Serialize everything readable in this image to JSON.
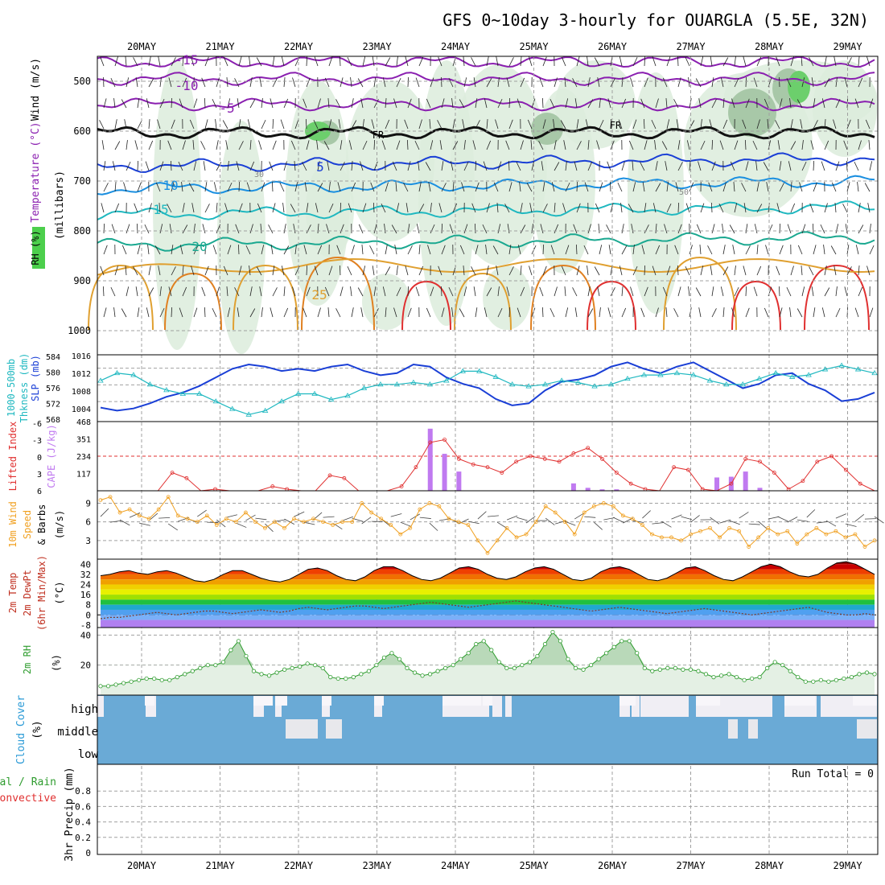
{
  "title": "GFS 0~10day 3-hourly for OUARGLA (5.5E, 32N)",
  "date_labels": [
    "20MAY",
    "21MAY",
    "22MAY",
    "23MAY",
    "24MAY",
    "25MAY",
    "26MAY",
    "27MAY",
    "28MAY",
    "29MAY"
  ],
  "panels": {
    "upper": {
      "label_wind": "Wind (m/s)",
      "label_temp": "Temperature (°C)",
      "label_rh": "RH (%)",
      "label_axis": "(millibars)",
      "pressure_ticks": [
        "500",
        "600",
        "700",
        "800",
        "900",
        "1000"
      ],
      "fr_label": "FR"
    },
    "thickness": {
      "label_thk_a": "1000-500mb",
      "label_thk_b": "Thkness (dm)",
      "label_slp": "SLP (mb)",
      "thk_ticks": [
        "584",
        "580",
        "576",
        "572",
        "568"
      ],
      "slp_ticks": [
        "1016",
        "1012",
        "1008",
        "1004"
      ]
    },
    "cape": {
      "label_li": "Lifted Index",
      "label_cape": "CAPE (J/kg)",
      "li_ticks": [
        "-6",
        "-3",
        "0",
        "3",
        "6"
      ],
      "cape_ticks": [
        "468",
        "351",
        "234",
        "117"
      ]
    },
    "wind10": {
      "label_a": "10m Wind",
      "label_b": "Speed",
      "label_c": "& Barbs",
      "label_unit": "(m/s)",
      "ticks": [
        "9",
        "6",
        "3"
      ]
    },
    "temp2m": {
      "label_a": "2m Temp",
      "label_b": "2m DewPt",
      "label_c": "(6hr Min/Max)",
      "label_unit": "(°C)",
      "ticks": [
        "40",
        "32",
        "24",
        "16",
        "8",
        "0",
        "-8"
      ]
    },
    "rh2m": {
      "label_a": "2m RH",
      "label_unit": "(%)",
      "ticks": [
        "40",
        "20"
      ]
    },
    "cloud": {
      "label_a": "Cloud Cover",
      "label_unit": "(%)",
      "levels": [
        "high",
        "middle",
        "low"
      ]
    },
    "precip": {
      "label_a": "Total / Rain",
      "label_b": "Convective",
      "label_c": "3hr Precip (mm)",
      "ticks": [
        "0.8",
        "0.6",
        "0.4",
        "0.2",
        "0"
      ],
      "run_total": "Run Total = 0"
    }
  },
  "colors": {
    "grid": "#a0a0a0",
    "slp": "#1a3fd6",
    "thickness": "#1fb8c0",
    "li": "#e03030",
    "cape": "#c07af0",
    "wind": "#f0a020",
    "rh": "#2e9c2e",
    "rh_fill": "#b9d9b9",
    "cloud": "#6aaad6",
    "cloud_clear": "#f0eef4",
    "freezing": "#101010"
  },
  "chart_data": [
    {
      "type": "line",
      "name": "upper-air",
      "isotherm_labels": [
        "-15",
        "-10",
        "-5",
        "5",
        "10",
        "15",
        "20",
        "25"
      ],
      "rh_contour_labels": [
        "30",
        "50"
      ],
      "ylim": [
        450,
        1000
      ]
    },
    {
      "type": "line",
      "series": [
        {
          "name": "SLP (mb)",
          "values": [
            1004.5,
            1003.8,
            1004.3,
            1005.5,
            1007.0,
            1008.0,
            1009.5,
            1011.5,
            1013.5,
            1014.5,
            1014.0,
            1013.0,
            1013.5,
            1013.0,
            1014.0,
            1014.5,
            1013.0,
            1012.0,
            1012.5,
            1014.5,
            1014.0,
            1011.5,
            1010.0,
            1009.0,
            1006.5,
            1005.0,
            1005.5,
            1008.5,
            1010.5,
            1011.0,
            1012.0,
            1014.0,
            1015.0,
            1013.5,
            1012.5,
            1014.0,
            1015.0,
            1013.0,
            1011.0,
            1009.0,
            1010.0,
            1012.0,
            1012.5,
            1010.0,
            1008.5,
            1006.0,
            1006.5,
            1008.0
          ]
        },
        {
          "name": "1000-500mb Thkness (dm)",
          "values": [
            578.0,
            580.0,
            579.5,
            577.0,
            575.5,
            574.5,
            574.5,
            572.5,
            570.5,
            569.0,
            570.0,
            572.5,
            574.5,
            574.5,
            573.0,
            574.0,
            576.0,
            577.0,
            577.0,
            577.5,
            577.0,
            578.0,
            580.5,
            580.5,
            579.0,
            577.0,
            576.5,
            577.0,
            578.0,
            577.5,
            576.5,
            577.0,
            578.5,
            579.5,
            579.5,
            580.0,
            579.5,
            578.0,
            577.0,
            577.0,
            578.5,
            580.0,
            579.0,
            579.5,
            581.0,
            582.0,
            581.0,
            580.0
          ]
        }
      ],
      "ylim_slp": [
        1002,
        1016
      ],
      "ylim_thk": [
        568,
        584
      ]
    },
    {
      "type": "bar",
      "series": [
        {
          "name": "Lifted Index",
          "values": [
            6.5,
            7.0,
            7.5,
            7.0,
            6.5,
            3.0,
            4.0,
            6.5,
            6.0,
            7.5,
            7.0,
            6.5,
            5.5,
            6.0,
            7.0,
            6.5,
            3.5,
            4.0,
            6.5,
            7.0,
            6.5,
            5.5,
            2.0,
            -2.5,
            -3.0,
            0.5,
            1.5,
            2.0,
            3.0,
            1.0,
            0.0,
            0.5,
            1.0,
            -0.5,
            -1.5,
            0.5,
            3.0,
            5.0,
            6.0,
            6.5,
            2.0,
            2.5,
            6.0,
            7.0,
            5.0,
            0.5,
            1.0,
            3.0,
            6.0,
            4.5,
            1.0,
            0.0,
            2.5,
            5.0,
            6.5
          ]
        },
        {
          "name": "CAPE (J/kg)",
          "values": [
            0,
            0,
            0,
            0,
            0,
            0,
            0,
            0,
            0,
            0,
            0,
            0,
            0,
            0,
            0,
            0,
            0,
            0,
            0,
            0,
            0,
            0,
            0,
            420,
            250,
            130,
            0,
            0,
            0,
            0,
            0,
            0,
            0,
            50,
            20,
            10,
            10,
            0,
            0,
            0,
            0,
            0,
            0,
            90,
            95,
            130,
            20,
            0,
            0,
            0,
            0,
            0,
            0,
            0,
            0
          ]
        }
      ],
      "ylim_li": [
        -6,
        6
      ],
      "ylim_cape": [
        0,
        468
      ]
    },
    {
      "type": "line",
      "series": [
        {
          "name": "10m Wind Speed",
          "values": [
            9.5,
            10.0,
            7.5,
            8.0,
            7.0,
            6.5,
            8.0,
            10.0,
            7.0,
            6.5,
            6.0,
            7.0,
            5.5,
            6.5,
            6.0,
            7.5,
            6.0,
            5.0,
            6.0,
            5.0,
            6.5,
            6.0,
            6.5,
            6.0,
            5.5,
            6.0,
            6.0,
            9.0,
            7.5,
            6.5,
            5.5,
            4.0,
            5.0,
            8.0,
            9.0,
            8.5,
            6.5,
            6.0,
            5.5,
            3.0,
            1.0,
            3.0,
            5.0,
            3.5,
            4.0,
            6.0,
            8.5,
            7.5,
            6.0,
            4.0,
            7.5,
            8.5,
            9.0,
            8.5,
            7.0,
            6.5,
            5.5,
            4.0,
            3.5,
            3.5,
            3.0,
            4.0,
            4.5,
            5.0,
            3.5,
            5.0,
            4.5,
            2.0,
            3.5,
            5.0,
            4.0,
            4.5,
            2.5,
            4.0,
            5.0,
            4.0,
            4.5,
            3.5,
            4.0,
            2.0,
            3.0
          ]
        }
      ],
      "ylim": [
        0,
        11
      ]
    },
    {
      "type": "area",
      "series": [
        {
          "name": "2m Temp",
          "values": [
            31,
            32,
            34,
            35,
            33,
            32,
            34,
            35,
            33,
            30,
            27,
            26,
            28,
            32,
            35,
            35,
            32,
            29,
            27,
            26,
            28,
            32,
            36,
            37,
            35,
            31,
            28,
            27,
            30,
            35,
            38,
            38,
            35,
            31,
            28,
            27,
            29,
            33,
            37,
            38,
            36,
            32,
            29,
            28,
            30,
            34,
            37,
            38,
            36,
            32,
            28,
            27,
            29,
            34,
            37,
            38,
            36,
            32,
            28,
            27,
            29,
            33,
            37,
            38,
            35,
            31,
            28,
            27,
            30,
            34,
            38,
            40,
            38,
            34,
            31,
            30,
            32,
            37,
            41,
            42,
            40,
            36,
            32
          ]
        },
        {
          "name": "2m DewPt",
          "values": [
            -3,
            -2,
            -2,
            -1,
            0,
            1,
            2,
            1,
            0,
            1,
            2,
            3,
            3,
            2,
            1,
            2,
            3,
            4,
            3,
            2,
            3,
            5,
            6,
            5,
            4,
            5,
            6,
            7,
            7,
            6,
            5,
            6,
            7,
            8,
            9,
            10,
            9,
            8,
            7,
            6,
            7,
            8,
            9,
            10,
            11,
            10,
            9,
            8,
            7,
            6,
            5,
            4,
            3,
            4,
            5,
            6,
            5,
            4,
            3,
            2,
            1,
            2,
            3,
            4,
            5,
            4,
            3,
            2,
            1,
            0,
            1,
            2,
            3,
            4,
            5,
            6,
            4,
            2,
            1,
            0,
            0,
            1,
            0
          ]
        }
      ],
      "ylim": [
        -10,
        44
      ]
    },
    {
      "type": "area",
      "series": [
        {
          "name": "2m RH",
          "values": [
            6,
            6,
            7,
            8,
            9,
            10,
            11,
            11,
            10,
            10,
            12,
            14,
            16,
            18,
            20,
            20,
            22,
            30,
            36,
            26,
            16,
            14,
            13,
            15,
            17,
            18,
            19,
            21,
            20,
            18,
            12,
            11,
            11,
            12,
            14,
            16,
            20,
            25,
            28,
            24,
            18,
            15,
            13,
            14,
            16,
            18,
            20,
            24,
            28,
            34,
            36,
            30,
            22,
            18,
            18,
            20,
            22,
            26,
            34,
            42,
            36,
            24,
            18,
            17,
            20,
            24,
            28,
            32,
            36,
            36,
            28,
            18,
            16,
            17,
            18,
            18,
            17,
            17,
            16,
            14,
            12,
            13,
            14,
            12,
            10,
            11,
            12,
            18,
            22,
            20,
            16,
            12,
            9,
            9,
            10,
            9,
            10,
            11,
            12,
            14,
            15,
            14
          ]
        }
      ],
      "ylim": [
        0,
        45
      ]
    },
    {
      "type": "heatmap",
      "name": "Cloud Cover",
      "rows": [
        "high",
        "middle",
        "low"
      ]
    },
    {
      "type": "bar",
      "name": "3hr Precip (mm)",
      "values": [],
      "ylim": [
        0,
        1
      ]
    }
  ]
}
